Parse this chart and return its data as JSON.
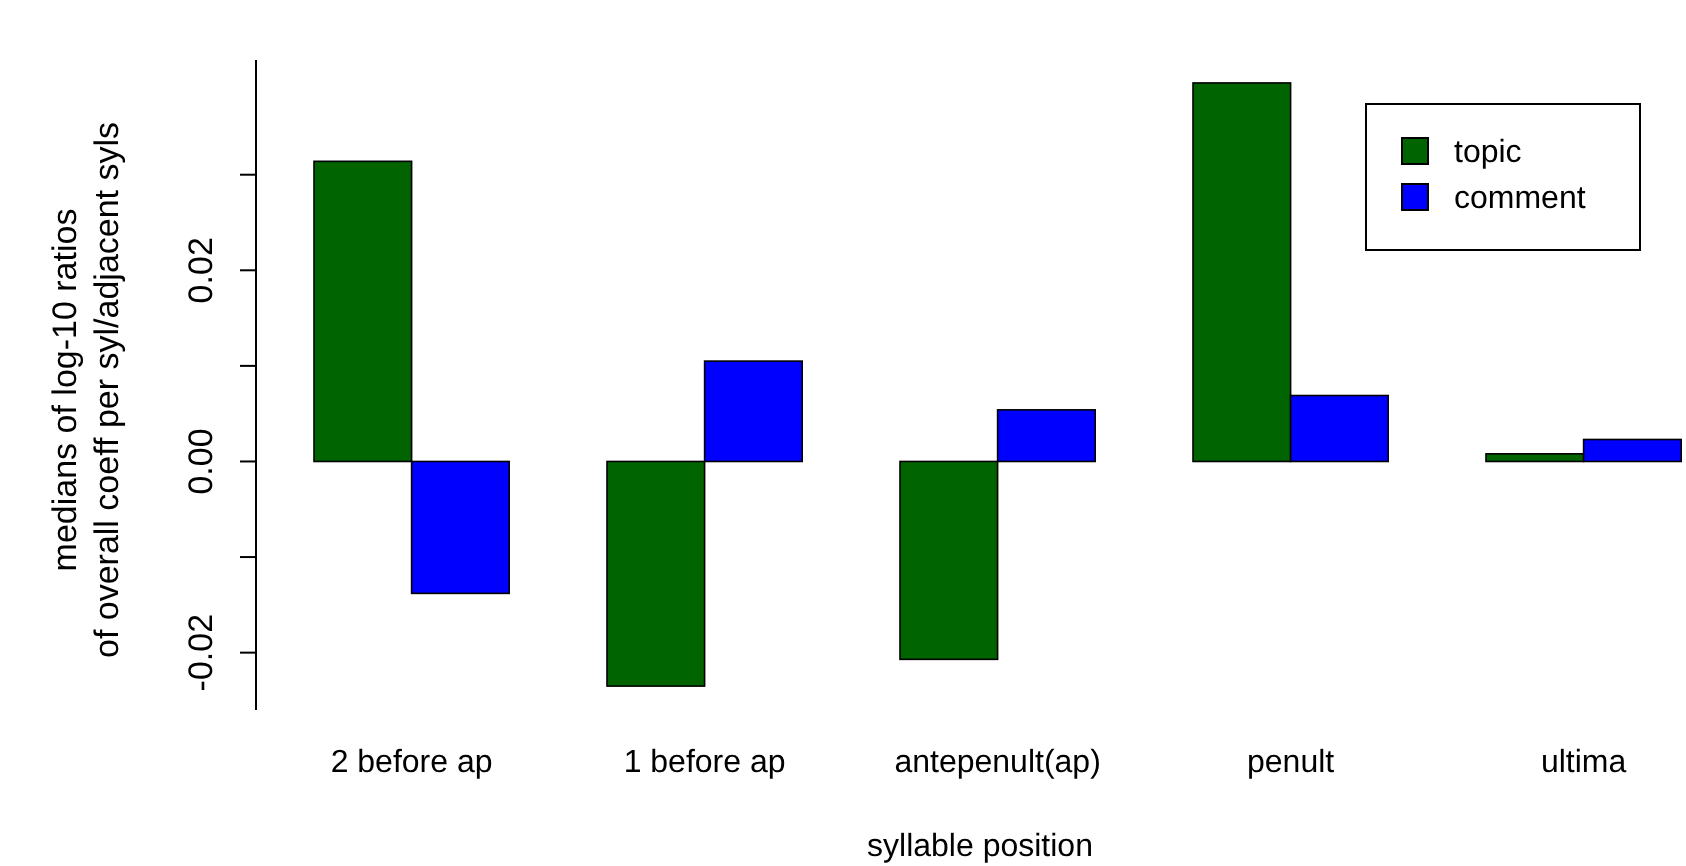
{
  "chart_data": {
    "type": "bar",
    "xlabel": "syllable position",
    "ylabel": "medians of log-10 ratios\nof overall coeff per syl/adjacent syls",
    "categories": [
      "2 before ap",
      "1 before ap",
      "antepenult(ap)",
      "penult",
      "ultima"
    ],
    "series": [
      {
        "name": "topic",
        "color": "#006400",
        "values": [
          0.0314,
          -0.0235,
          -0.0207,
          0.0396,
          0.0008
        ]
      },
      {
        "name": "comment",
        "color": "#0000ff",
        "values": [
          -0.0138,
          0.0105,
          0.0054,
          0.0069,
          0.0023
        ]
      }
    ],
    "ylim": [
      -0.026,
      0.042
    ],
    "yticks": [
      -0.02,
      {
        "value": -0.01,
        "label": null
      },
      {
        "value": 0,
        "label": "0.00"
      },
      {
        "value": 0.01,
        "label": null
      },
      0.02,
      {
        "value": 0.03,
        "label": null
      }
    ],
    "legend": "top right"
  }
}
